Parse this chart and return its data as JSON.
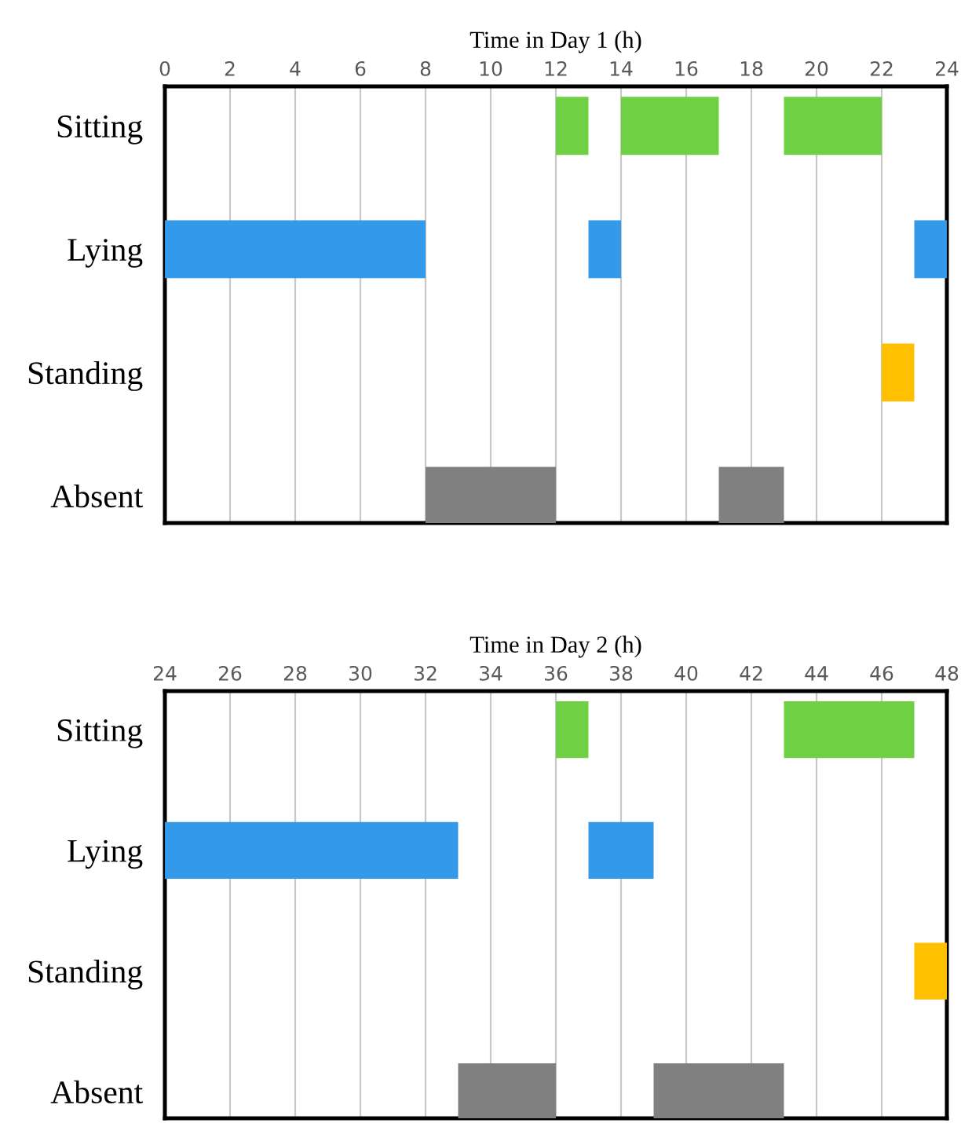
{
  "chart_data": [
    {
      "type": "bar",
      "orientation": "horizontal",
      "xlabel": "Time in Day 1 (h)",
      "categories": [
        "Sitting",
        "Lying",
        "Standing",
        "Absent"
      ],
      "series": [
        {
          "base": [
            12,
            0,
            22,
            8
          ],
          "values": [
            1,
            8,
            1,
            4
          ],
          "colors": [
            "#70d044",
            "#3399e8",
            "#ffc000",
            "#808080"
          ]
        },
        {
          "base": [
            14,
            13,
            null,
            17
          ],
          "values": [
            3,
            1,
            null,
            2
          ],
          "colors": [
            "#70d044",
            "#3399e8",
            "#ffc000",
            "#808080"
          ]
        },
        {
          "base": [
            19,
            23,
            null,
            null
          ],
          "values": [
            3,
            1,
            null,
            null
          ],
          "colors": [
            "#70d044",
            "#3399e8",
            "#ffc000",
            "#808080"
          ]
        }
      ],
      "xlim": [
        0,
        24
      ],
      "xticks": [
        0,
        2,
        4,
        6,
        8,
        10,
        12,
        14,
        16,
        18,
        20,
        22,
        24
      ],
      "grid": "x"
    },
    {
      "type": "bar",
      "orientation": "horizontal",
      "xlabel": "Time in Day 2 (h)",
      "categories": [
        "Sitting",
        "Lying",
        "Standing",
        "Absent"
      ],
      "series": [
        {
          "base": [
            36,
            24,
            47,
            33
          ],
          "values": [
            1,
            9,
            1,
            3
          ],
          "colors": [
            "#70d044",
            "#3399e8",
            "#ffc000",
            "#808080"
          ]
        },
        {
          "base": [
            43,
            37,
            null,
            39
          ],
          "values": [
            4,
            2,
            null,
            4
          ],
          "colors": [
            "#70d044",
            "#3399e8",
            "#ffc000",
            "#808080"
          ]
        }
      ],
      "xlim": [
        24,
        48
      ],
      "xticks": [
        24,
        26,
        28,
        30,
        32,
        34,
        36,
        38,
        40,
        42,
        44,
        46,
        48
      ],
      "grid": "x"
    }
  ]
}
